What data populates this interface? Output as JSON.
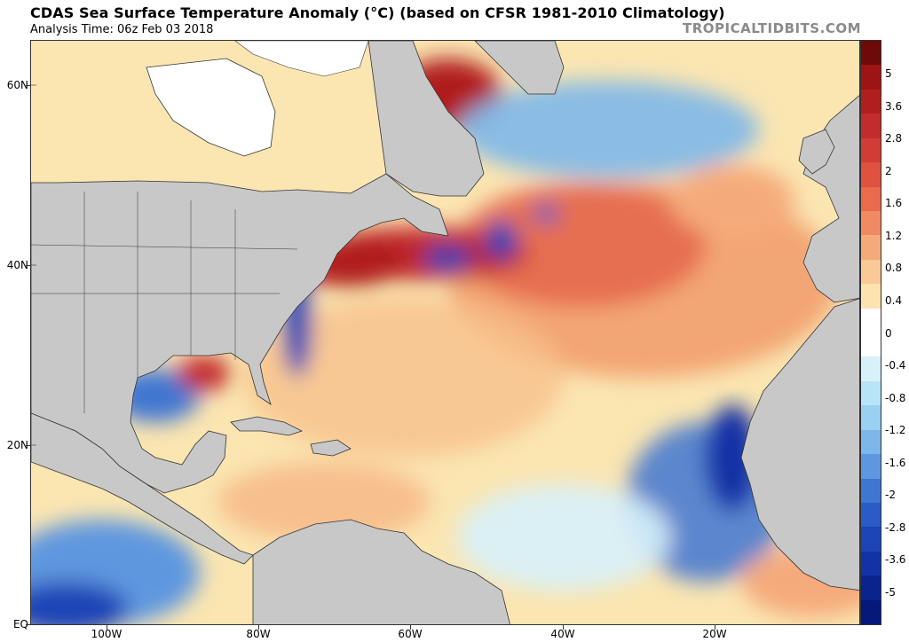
{
  "header": {
    "title": "CDAS Sea Surface Temperature Anomaly (°C) (based on CFSR 1981-2010 Climatology)",
    "subtitle": "Analysis Time: 06z Feb 03 2018",
    "brand": "TROPICALTIDBITS.COM"
  },
  "map": {
    "lat_labels": [
      "60N",
      "40N",
      "20N",
      "EQ"
    ],
    "lon_labels": [
      "100W",
      "80W",
      "60W",
      "40W",
      "20W"
    ],
    "extent": {
      "west": "110W",
      "east": "0",
      "south": "EQ",
      "north": "65N"
    }
  },
  "colorbar": {
    "labels": [
      "5",
      "3.6",
      "2.8",
      "2",
      "1.6",
      "1.2",
      "0.8",
      "0.4",
      "0",
      "-0.4",
      "-0.8",
      "-1.2",
      "-1.6",
      "-2",
      "-2.8",
      "-3.6",
      "-5"
    ],
    "colors": [
      "#6e0a0a",
      "#9e1414",
      "#b01e1e",
      "#c22c2c",
      "#d23c36",
      "#e0513f",
      "#ea6a4e",
      "#f08a62",
      "#f5aa7c",
      "#f9c996",
      "#fce3b0",
      "#ffffff",
      "#ffffff",
      "#d7f1fb",
      "#b8e4f7",
      "#9ad0f1",
      "#7db7ea",
      "#5e97df",
      "#3f76d2",
      "#2a5bc6",
      "#1c44b6",
      "#1233a5",
      "#0a248e",
      "#06187a"
    ]
  }
}
